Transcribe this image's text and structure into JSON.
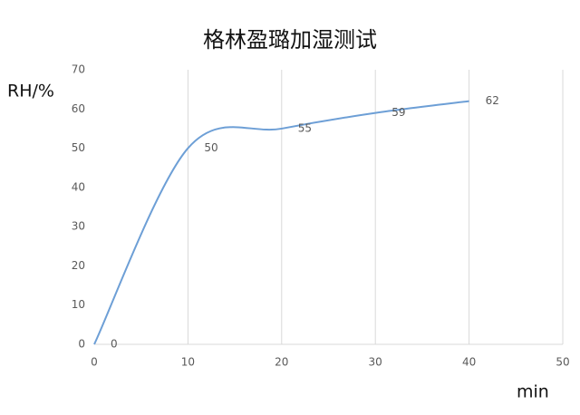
{
  "chart_data": {
    "type": "line",
    "title": "格林盈璐加湿测试",
    "y_label": "RH/%",
    "x_label": "min",
    "x": [
      0,
      10,
      20,
      30,
      40
    ],
    "series": [
      {
        "color": "#6d9fd6",
        "values": [
          0,
          50,
          55,
          59,
          62
        ]
      }
    ],
    "xlim": [
      0,
      50
    ],
    "xticks": [
      0,
      10,
      20,
      30,
      40,
      50
    ],
    "ylim": [
      0,
      70
    ],
    "yticks": [
      0,
      10,
      20,
      30,
      40,
      50,
      60,
      70
    ],
    "grid": "x",
    "smooth": true,
    "data_labels": true
  }
}
